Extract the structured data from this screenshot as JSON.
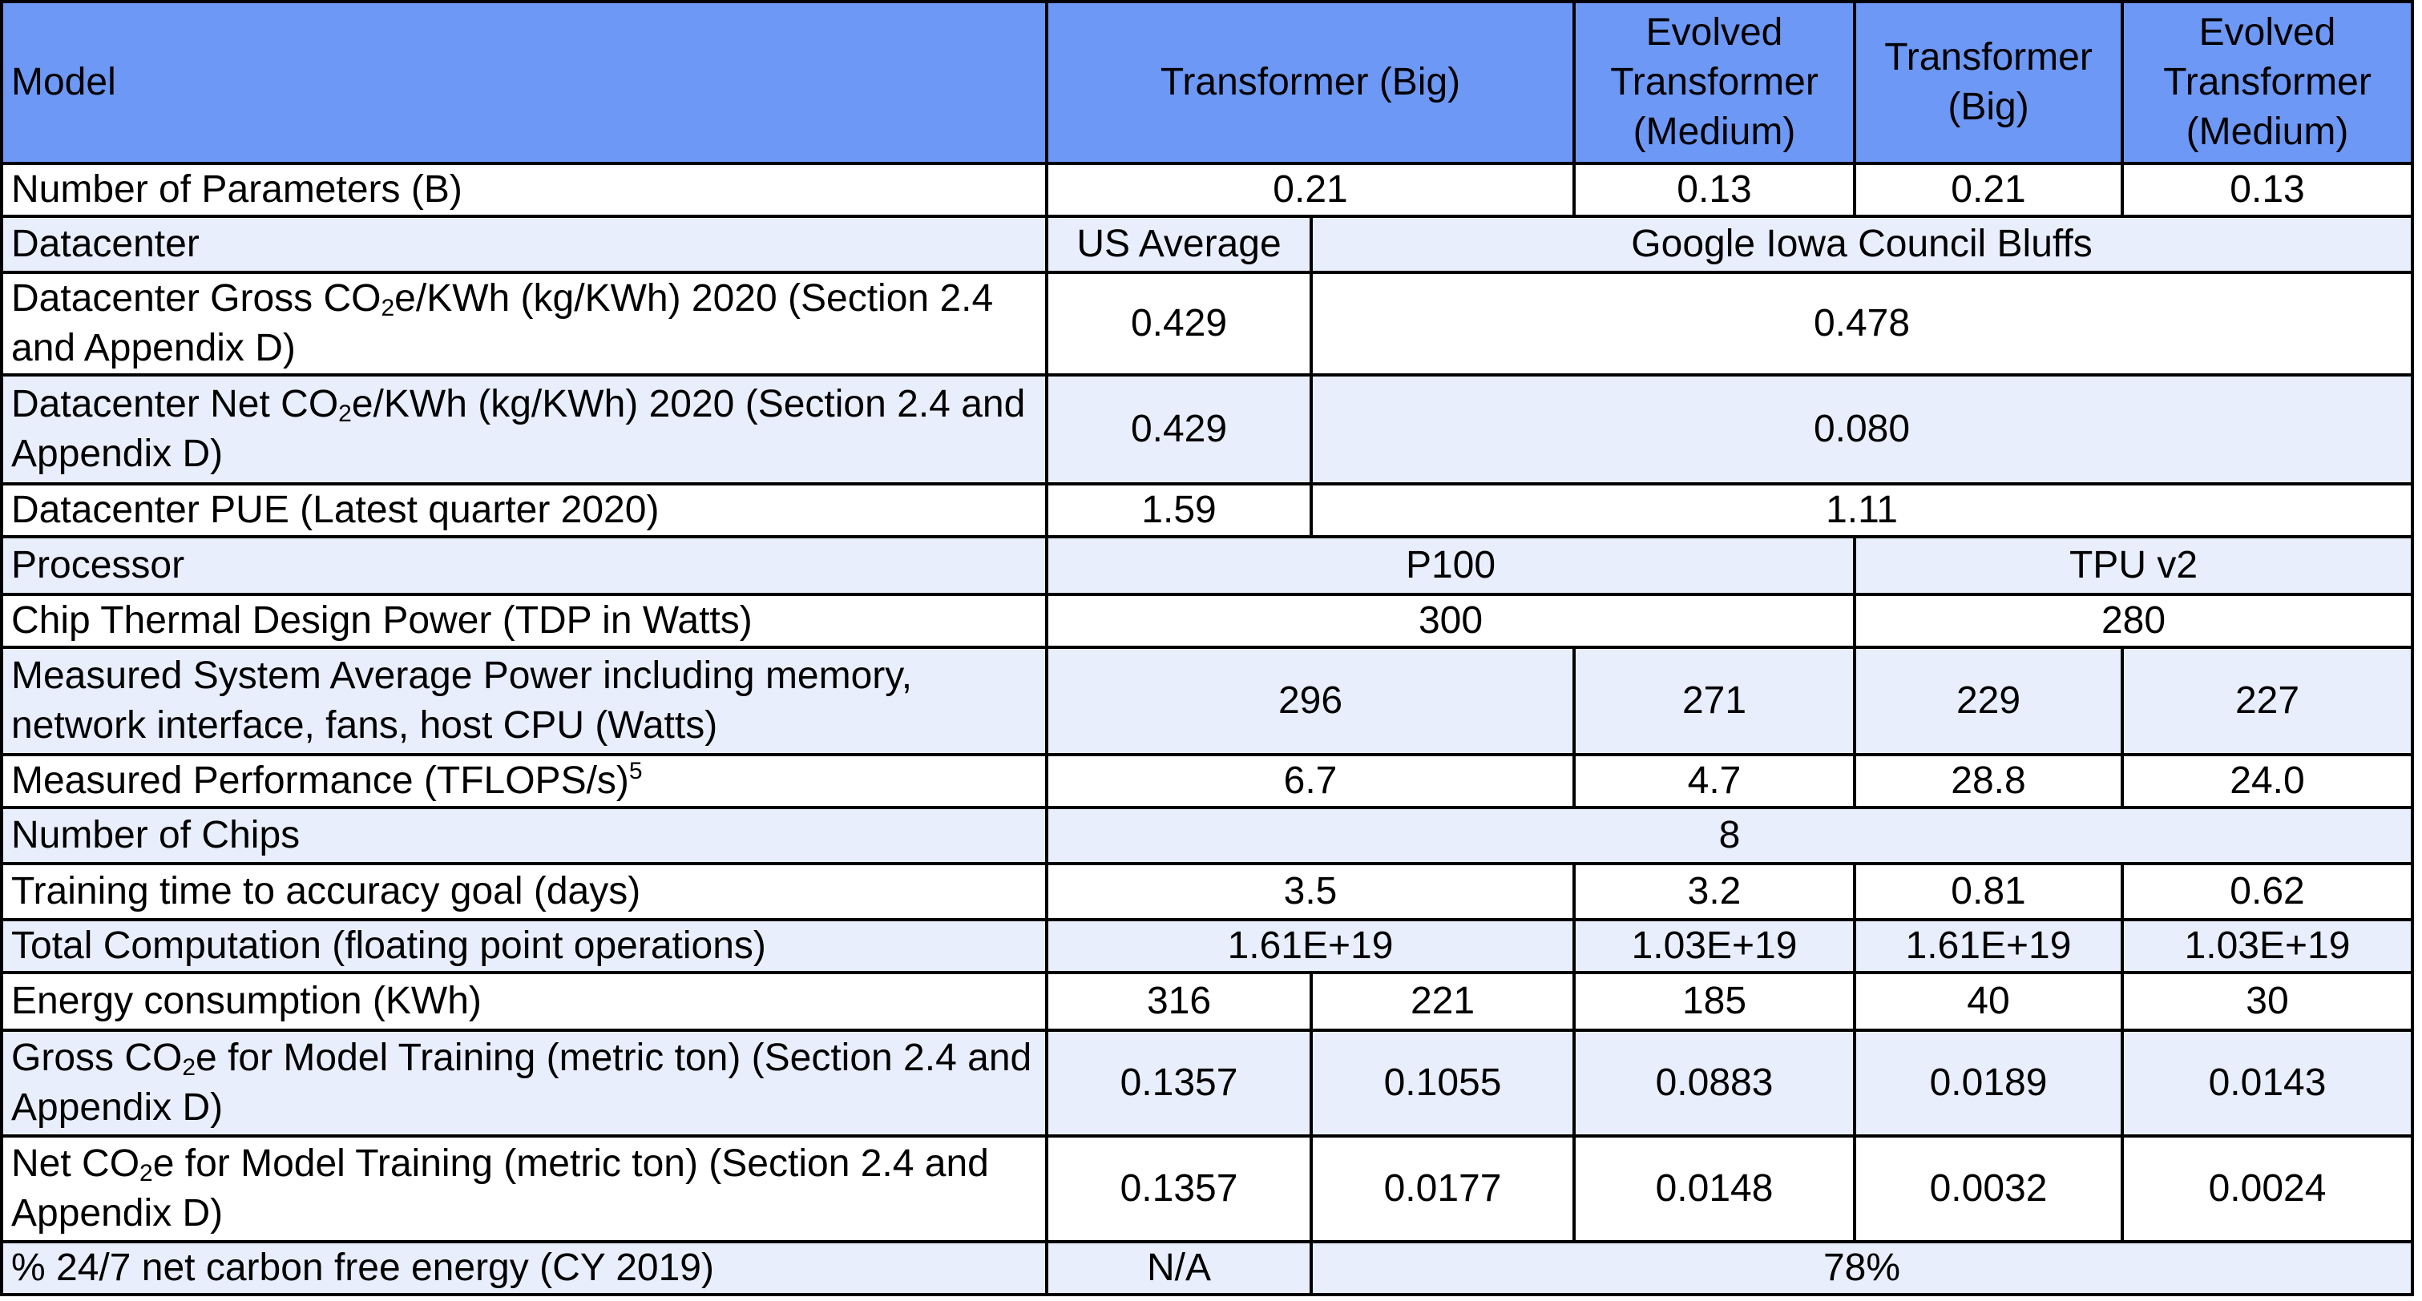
{
  "header": {
    "model": "Model",
    "col_a": "Transformer (Big)",
    "col_b": "Evolved Transformer (Medium)",
    "col_c": "Transformer (Big)",
    "col_d": "Evolved Transformer (Medium)"
  },
  "params": {
    "label": "Number of Parameters (B)",
    "a": "0.21",
    "b": "0.13",
    "c": "0.21",
    "d": "0.13"
  },
  "datacenter": {
    "label": "Datacenter",
    "us": "US Average",
    "google": "Google Iowa Council Bluffs"
  },
  "gross_intensity": {
    "label_pre": "Datacenter Gross CO",
    "label_sub": "2",
    "label_post": "e/KWh (kg/KWh) 2020 (Section 2.4 and Appendix D)",
    "us": "0.429",
    "google": "0.478"
  },
  "net_intensity": {
    "label_pre": "Datacenter Net CO",
    "label_sub": "2",
    "label_post": "e/KWh (kg/KWh) 2020 (Section 2.4 and Appendix D)",
    "us": "0.429",
    "google": "0.080"
  },
  "pue": {
    "label": "Datacenter PUE (Latest quarter 2020)",
    "us": "1.59",
    "google": "1.11"
  },
  "processor": {
    "label": "Processor",
    "gpu": "P100",
    "tpu": "TPU v2"
  },
  "tdp": {
    "label": "Chip Thermal Design Power (TDP in Watts)",
    "gpu": "300",
    "tpu": "280"
  },
  "avg_power": {
    "label": "Measured System Average Power including memory, network interface, fans, host CPU (Watts)",
    "a": "296",
    "b": "271",
    "c": "229",
    "d": "227"
  },
  "performance": {
    "label": "Measured Performance (TFLOPS/s)",
    "footnote": "5",
    "a": "6.7",
    "b": "4.7",
    "c": "28.8",
    "d": "24.0"
  },
  "chips": {
    "label": "Number of Chips",
    "value": "8"
  },
  "training_time": {
    "label": "Training time to accuracy goal (days)",
    "a": "3.5",
    "b": "3.2",
    "c": "0.81",
    "d": "0.62"
  },
  "computation": {
    "label": "Total Computation (floating point operations)",
    "a": "1.61E+19",
    "b": "1.03E+19",
    "c": "1.61E+19",
    "d": "1.03E+19"
  },
  "energy": {
    "label": "Energy consumption (KWh)",
    "a_us": "316",
    "a_google": "221",
    "b": "185",
    "c": "40",
    "d": "30"
  },
  "gross_co2": {
    "label_pre": "Gross CO",
    "label_sub": "2",
    "label_post": "e for Model Training (metric ton) (Section 2.4 and Appendix D)",
    "a_us": "0.1357",
    "a_google": "0.1055",
    "b": "0.0883",
    "c": "0.0189",
    "d": "0.0143"
  },
  "net_co2": {
    "label_pre": "Net CO",
    "label_sub": "2",
    "label_post": "e for Model Training (metric ton) (Section 2.4 and Appendix D)",
    "a_us": "0.1357",
    "a_google": "0.0177",
    "b": "0.0148",
    "c": "0.0032",
    "d": "0.0024"
  },
  "cfe": {
    "label": "% 24/7 net carbon free energy (CY 2019)",
    "us": "N/A",
    "google": "78%"
  },
  "colors": {
    "header_bg": "#6d98f5",
    "alt_row_bg": "#e8eefb",
    "border": "#000000"
  }
}
